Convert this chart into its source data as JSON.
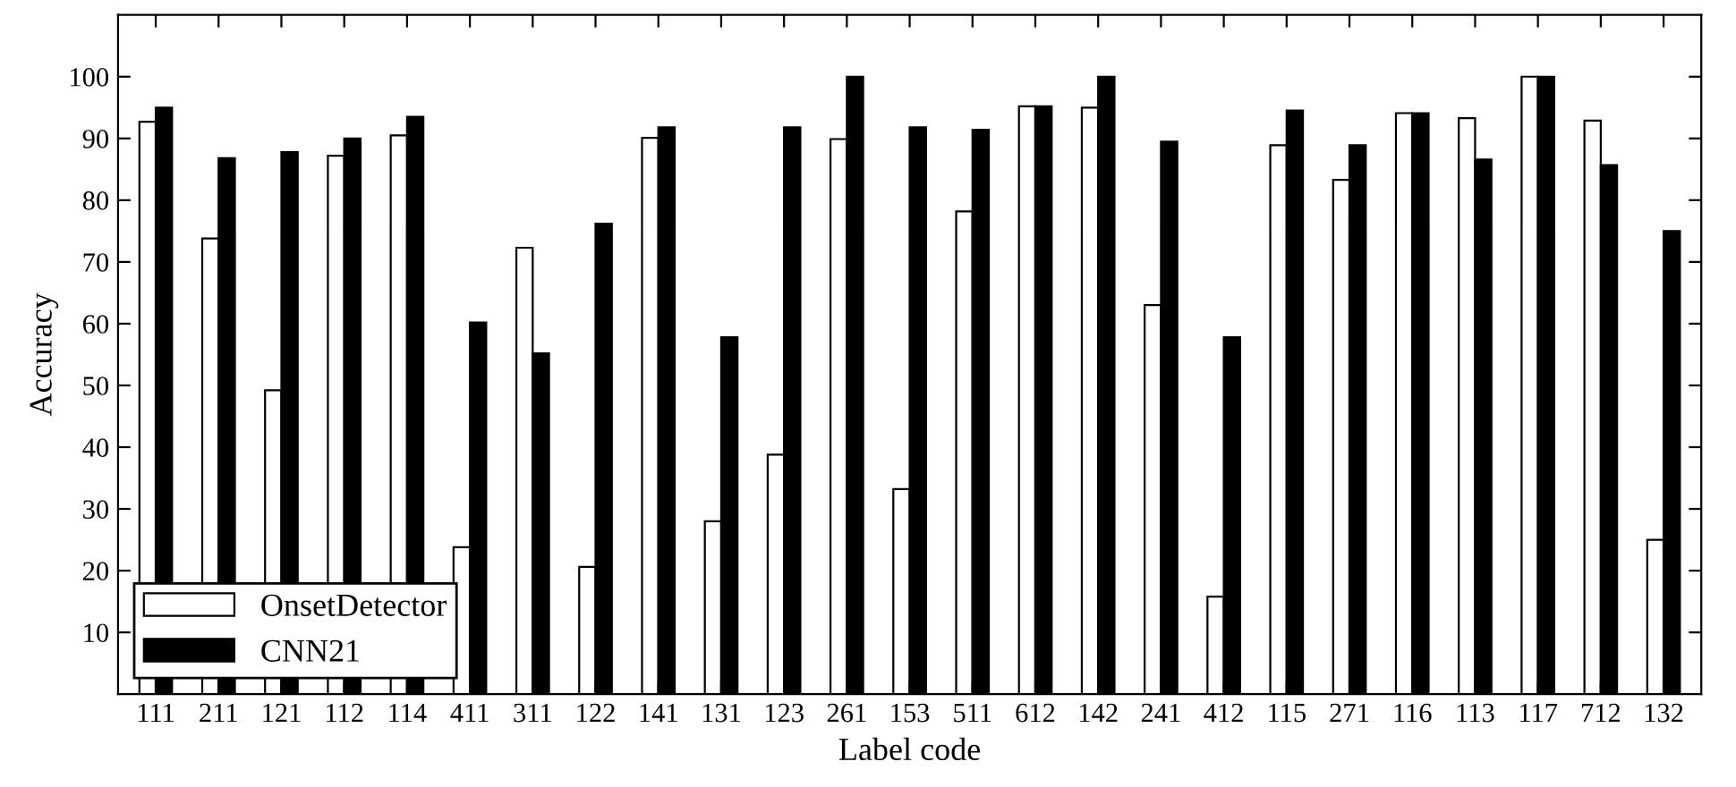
{
  "chart_data": {
    "type": "bar",
    "xlabel": "Label code",
    "ylabel": "Accuracy",
    "categories": [
      "111",
      "211",
      "121",
      "112",
      "114",
      "411",
      "311",
      "122",
      "141",
      "131",
      "123",
      "261",
      "153",
      "511",
      "612",
      "142",
      "241",
      "412",
      "115",
      "271",
      "116",
      "113",
      "117",
      "712",
      "132"
    ],
    "series": [
      {
        "name": "OnsetDetector",
        "color": "#ffffff",
        "values": [
          92.7,
          73.8,
          49.2,
          87.2,
          90.5,
          23.8,
          72.3,
          20.6,
          90.1,
          28,
          38.8,
          89.9,
          33.2,
          78.2,
          95.2,
          95,
          63,
          15.8,
          88.9,
          83.3,
          94.1,
          93.3,
          100,
          92.9,
          25
        ]
      },
      {
        "name": "CNN21",
        "color": "#000000",
        "values": [
          95,
          86.8,
          87.8,
          90,
          93.5,
          60.2,
          55.2,
          76.2,
          91.8,
          57.8,
          91.8,
          100,
          91.8,
          91.4,
          95.2,
          100,
          89.5,
          57.8,
          94.5,
          88.9,
          94.1,
          86.6,
          100,
          85.7,
          75
        ]
      }
    ],
    "ylim": [
      0,
      110
    ],
    "yticks": [
      10,
      20,
      30,
      40,
      50,
      60,
      70,
      80,
      90,
      100
    ],
    "grid": false,
    "legend": "bottom left"
  }
}
